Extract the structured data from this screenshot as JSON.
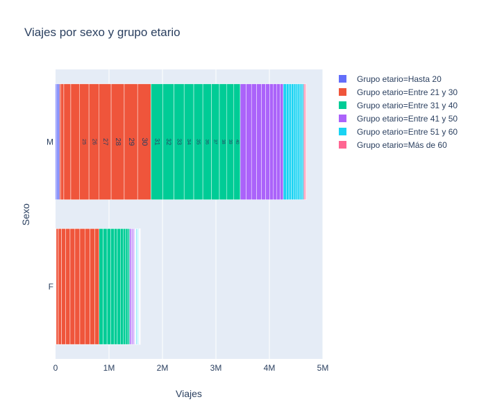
{
  "chart_data": {
    "type": "bar",
    "orientation": "horizontal",
    "barmode": "stack",
    "title": "Viajes por sexo y grupo etario",
    "xlabel": "Viajes",
    "ylabel": "Sexo",
    "xlim": [
      0,
      5000000
    ],
    "x_ticks": [
      0,
      1000000,
      2000000,
      3000000,
      4000000,
      5000000
    ],
    "x_tick_labels": [
      "0",
      "1M",
      "2M",
      "3M",
      "4M",
      "5M"
    ],
    "categories": [
      "M",
      "F"
    ],
    "legend_position": "top-right",
    "grid": true,
    "series": [
      {
        "name": "Grupo etario=Hasta 20",
        "color": "#636efa",
        "segments": [
          {
            "label": "",
            "values": [
              20000,
              3000
            ]
          },
          {
            "label": "",
            "values": [
              25000,
              4000
            ]
          },
          {
            "label": "",
            "values": [
              30000,
              5000
            ]
          }
        ]
      },
      {
        "name": "Grupo etario=Entre 21 y 30",
        "color": "#ef553b",
        "segments": [
          {
            "label": "",
            "values": [
              20000,
              40000
            ]
          },
          {
            "label": "",
            "values": [
              60000,
              60000
            ]
          },
          {
            "label": "",
            "values": [
              130000,
              75000
            ]
          },
          {
            "label": "",
            "values": [
              160000,
              85000
            ]
          },
          {
            "label": "25",
            "values": [
              180000,
              90000
            ]
          },
          {
            "label": "26",
            "values": [
              190000,
              92000
            ]
          },
          {
            "label": "27",
            "values": [
              225000,
              95000
            ]
          },
          {
            "label": "28",
            "values": [
              245000,
              93000
            ]
          },
          {
            "label": "29",
            "values": [
              250000,
              90000
            ]
          },
          {
            "label": "30",
            "values": [
              250000,
              83000
            ]
          }
        ]
      },
      {
        "name": "Grupo etario=Entre 31 y 40",
        "color": "#00cc96",
        "segments": [
          {
            "label": "31",
            "values": [
              220000,
              76000
            ]
          },
          {
            "label": "32",
            "values": [
              210000,
              72000
            ]
          },
          {
            "label": "33",
            "values": [
              190000,
              68000
            ]
          },
          {
            "label": "34",
            "values": [
              180000,
              64000
            ]
          },
          {
            "label": "35",
            "values": [
              170000,
              60000
            ]
          },
          {
            "label": "36",
            "values": [
              160000,
              56000
            ]
          },
          {
            "label": "37",
            "values": [
              150000,
              52000
            ]
          },
          {
            "label": "38",
            "values": [
              140000,
              48000
            ]
          },
          {
            "label": "39",
            "values": [
              130000,
              42000
            ]
          },
          {
            "label": "40",
            "values": [
              120000,
              32000
            ]
          }
        ]
      },
      {
        "name": "Grupo etario=Entre 41 y 50",
        "color": "#ab63fa",
        "segments": [
          {
            "label": "",
            "values": [
              110000,
              20000
            ]
          },
          {
            "label": "",
            "values": [
              100000,
              18000
            ]
          },
          {
            "label": "",
            "values": [
              95000,
              16000
            ]
          },
          {
            "label": "",
            "values": [
              90000,
              14000
            ]
          },
          {
            "label": "",
            "values": [
              80000,
              12000
            ]
          },
          {
            "label": "",
            "values": [
              75000,
              10000
            ]
          },
          {
            "label": "",
            "values": [
              70000,
              8000
            ]
          },
          {
            "label": "",
            "values": [
              65000,
              7000
            ]
          },
          {
            "label": "",
            "values": [
              60000,
              6000
            ]
          },
          {
            "label": "",
            "values": [
              60000,
              6000
            ]
          }
        ]
      },
      {
        "name": "Grupo etario=Entre 51 y 60",
        "color": "#19d3f3",
        "segments": [
          {
            "label": "",
            "values": [
              55000,
              12000
            ]
          },
          {
            "label": "",
            "values": [
              50000,
              11000
            ]
          },
          {
            "label": "",
            "values": [
              45000,
              10000
            ]
          },
          {
            "label": "",
            "values": [
              45000,
              9000
            ]
          },
          {
            "label": "",
            "values": [
              40000,
              8000
            ]
          },
          {
            "label": "",
            "values": [
              35000,
              7000
            ]
          },
          {
            "label": "",
            "values": [
              30000,
              6000
            ]
          },
          {
            "label": "",
            "values": [
              30000,
              5000
            ]
          },
          {
            "label": "",
            "values": [
              25000,
              4000
            ]
          },
          {
            "label": "",
            "values": [
              25000,
              3000
            ]
          }
        ]
      },
      {
        "name": "Grupo etario=Más de 60",
        "color": "#ff6692",
        "segments": [
          {
            "label": "",
            "values": [
              20000,
              4000
            ]
          },
          {
            "label": "",
            "values": [
              15000,
              3000
            ]
          },
          {
            "label": "",
            "values": [
              10000,
              2000
            ]
          },
          {
            "label": "",
            "values": [
              8000,
              1000
            ]
          }
        ]
      }
    ]
  }
}
